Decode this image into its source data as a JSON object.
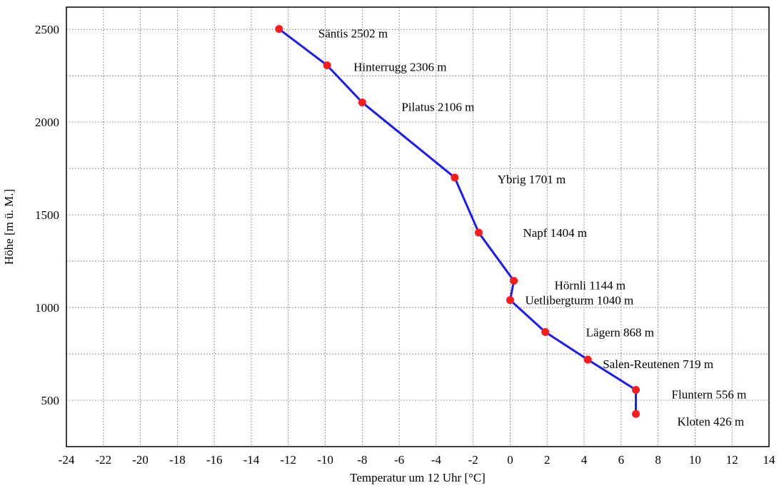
{
  "chart_data": {
    "type": "line",
    "xlabel": "Temperatur um 12 Uhr [°C]",
    "ylabel": "Höhe [m ü. M.]",
    "xlim": [
      -24,
      14
    ],
    "ylim": [
      250,
      2620
    ],
    "xticks": [
      -24,
      -22,
      -20,
      -18,
      -16,
      -14,
      -12,
      -10,
      -8,
      -6,
      -4,
      -2,
      0,
      2,
      4,
      6,
      8,
      10,
      12,
      14
    ],
    "yticks": [
      500,
      1000,
      1500,
      2000,
      2500
    ],
    "grid": true,
    "colors": {
      "line": "#1a1aff",
      "marker": "#ff1a1a"
    },
    "series": [
      {
        "points": [
          {
            "x": -12.5,
            "y": 2502,
            "label": "Säntis 2502 m"
          },
          {
            "x": -9.9,
            "y": 2306,
            "label": "Hinterrugg 2306 m"
          },
          {
            "x": -8.0,
            "y": 2106,
            "label": "Pilatus 2106 m"
          },
          {
            "x": -3.0,
            "y": 1701,
            "label": "Ybrig 1701 m"
          },
          {
            "x": -1.7,
            "y": 1404,
            "label": "Napf 1404 m"
          },
          {
            "x": 0.2,
            "y": 1144,
            "label": "Hörnli 1144 m"
          },
          {
            "x": 0.0,
            "y": 1040,
            "label": "Uetlibergturm 1040 m"
          },
          {
            "x": 1.9,
            "y": 868,
            "label": "Lägern 868 m"
          },
          {
            "x": 4.2,
            "y": 719,
            "label": "Salen-Reutenen 719 m"
          },
          {
            "x": 6.8,
            "y": 556,
            "label": "Fluntern 556 m"
          },
          {
            "x": 6.8,
            "y": 426,
            "label": "Kloten 426 m"
          }
        ]
      }
    ]
  }
}
